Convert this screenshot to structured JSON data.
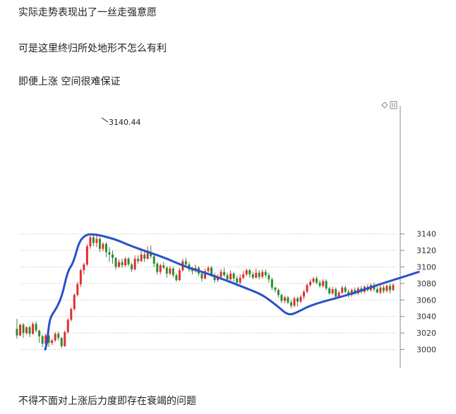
{
  "paragraphs": [
    "实际走势表现出了一丝走强意愿",
    "可是这里终归所处地形不怎么有利",
    "即便上涨 空间很难保证",
    "不得不面对上涨后力度即存在衰竭的问题"
  ],
  "chart_data": {
    "type": "candlestick",
    "title": "",
    "xlabel": "",
    "ylabel": "",
    "ylim": [
      2990,
      3146
    ],
    "yticks": [
      "3140",
      "3120",
      "3100",
      "3080",
      "3060",
      "3040",
      "3020",
      "3000"
    ],
    "peak_label": "3140.44",
    "colors": {
      "up": "#e03030",
      "down": "#2e8b2e",
      "annotation": "#2952c9",
      "grid": "#bbbbbb"
    },
    "grid": true,
    "annotation_trend": [
      [
        0,
        3000
      ],
      [
        1,
        3008
      ],
      [
        2,
        3030
      ],
      [
        3,
        3040
      ],
      [
        6,
        3050
      ],
      [
        9,
        3065
      ],
      [
        12,
        3095
      ],
      [
        15,
        3105
      ],
      [
        18,
        3130
      ],
      [
        21,
        3138
      ],
      [
        24,
        3140
      ],
      [
        30,
        3138
      ],
      [
        38,
        3133
      ],
      [
        45,
        3126
      ],
      [
        55,
        3118
      ],
      [
        65,
        3110
      ],
      [
        75,
        3100
      ],
      [
        85,
        3093
      ],
      [
        95,
        3085
      ],
      [
        105,
        3076
      ],
      [
        115,
        3067
      ],
      [
        120,
        3059
      ],
      [
        125,
        3050
      ],
      [
        128,
        3044
      ],
      [
        131,
        3042
      ],
      [
        135,
        3046
      ],
      [
        140,
        3052
      ],
      [
        148,
        3058
      ],
      [
        158,
        3064
      ],
      [
        168,
        3071
      ],
      [
        178,
        3079
      ],
      [
        188,
        3086
      ],
      [
        199,
        3094
      ]
    ],
    "candles": [
      [
        3025,
        3017,
        3037,
        3013
      ],
      [
        3017,
        3030,
        3031,
        3016
      ],
      [
        3030,
        3020,
        3032,
        3014
      ],
      [
        3020,
        3027,
        3028,
        3018
      ],
      [
        3027,
        3019,
        3029,
        3015
      ],
      [
        3019,
        3031,
        3033,
        3018
      ],
      [
        3031,
        3023,
        3034,
        3021
      ],
      [
        3023,
        3016,
        3024,
        3008
      ],
      [
        3016,
        3007,
        3018,
        3003
      ],
      [
        3007,
        3017,
        3019,
        3005
      ],
      [
        3017,
        3008,
        3018,
        3003
      ],
      [
        3008,
        3011,
        3013,
        3005
      ],
      [
        3011,
        3019,
        3021,
        3009
      ],
      [
        3019,
        3014,
        3022,
        3011
      ],
      [
        3014,
        3004,
        3015,
        3002
      ],
      [
        3004,
        3021,
        3023,
        3003
      ],
      [
        3021,
        3036,
        3038,
        3019
      ],
      [
        3036,
        3049,
        3051,
        3034
      ],
      [
        3049,
        3066,
        3068,
        3047
      ],
      [
        3066,
        3079,
        3082,
        3064
      ],
      [
        3079,
        3096,
        3098,
        3076
      ],
      [
        3096,
        3103,
        3105,
        3091
      ],
      [
        3103,
        3125,
        3128,
        3101
      ],
      [
        3125,
        3136,
        3138,
        3122
      ],
      [
        3136,
        3129,
        3139,
        3125
      ],
      [
        3129,
        3134,
        3140.44,
        3124
      ],
      [
        3134,
        3122,
        3136,
        3118
      ],
      [
        3122,
        3128,
        3130,
        3119
      ],
      [
        3128,
        3118,
        3130,
        3112
      ],
      [
        3118,
        3115,
        3124,
        3106
      ],
      [
        3115,
        3111,
        3120,
        3104
      ],
      [
        3111,
        3100,
        3112,
        3097
      ],
      [
        3100,
        3106,
        3109,
        3099
      ],
      [
        3106,
        3102,
        3110,
        3099
      ],
      [
        3102,
        3110,
        3112,
        3100
      ],
      [
        3110,
        3103,
        3112,
        3101
      ],
      [
        3103,
        3097,
        3105,
        3094
      ],
      [
        3097,
        3110,
        3114,
        3096
      ],
      [
        3110,
        3107,
        3114,
        3104
      ],
      [
        3107,
        3115,
        3121,
        3106
      ],
      [
        3115,
        3110,
        3121,
        3106
      ],
      [
        3110,
        3118,
        3125,
        3109
      ],
      [
        3118,
        3113,
        3126,
        3110
      ],
      [
        3113,
        3104,
        3115,
        3100
      ],
      [
        3104,
        3094,
        3106,
        3091
      ],
      [
        3094,
        3102,
        3104,
        3091
      ],
      [
        3102,
        3099,
        3106,
        3097
      ],
      [
        3099,
        3092,
        3101,
        3087
      ],
      [
        3092,
        3098,
        3101,
        3090
      ],
      [
        3098,
        3090,
        3100,
        3087
      ],
      [
        3090,
        3084,
        3092,
        3082
      ],
      [
        3084,
        3096,
        3099,
        3083
      ],
      [
        3096,
        3107,
        3110,
        3094
      ],
      [
        3107,
        3103,
        3111,
        3100
      ],
      [
        3103,
        3097,
        3106,
        3094
      ],
      [
        3097,
        3095,
        3100,
        3091
      ],
      [
        3095,
        3099,
        3103,
        3093
      ],
      [
        3099,
        3092,
        3101,
        3089
      ],
      [
        3092,
        3086,
        3094,
        3082
      ],
      [
        3086,
        3095,
        3098,
        3085
      ],
      [
        3095,
        3099,
        3101,
        3093
      ],
      [
        3099,
        3090,
        3101,
        3088
      ],
      [
        3090,
        3084,
        3093,
        3081
      ],
      [
        3084,
        3088,
        3091,
        3082
      ],
      [
        3088,
        3094,
        3097,
        3086
      ],
      [
        3094,
        3090,
        3099,
        3088
      ],
      [
        3090,
        3085,
        3093,
        3083
      ],
      [
        3085,
        3092,
        3096,
        3083
      ],
      [
        3092,
        3086,
        3094,
        3082
      ],
      [
        3086,
        3081,
        3089,
        3078
      ],
      [
        3081,
        3087,
        3091,
        3079
      ],
      [
        3087,
        3091,
        3095,
        3085
      ],
      [
        3091,
        3096,
        3098,
        3089
      ],
      [
        3096,
        3091,
        3098,
        3087
      ],
      [
        3091,
        3087,
        3094,
        3085
      ],
      [
        3087,
        3093,
        3098,
        3086
      ],
      [
        3093,
        3088,
        3096,
        3085
      ],
      [
        3088,
        3094,
        3097,
        3086
      ],
      [
        3094,
        3090,
        3097,
        3087
      ],
      [
        3090,
        3085,
        3093,
        3081
      ],
      [
        3085,
        3075,
        3087,
        3072
      ],
      [
        3075,
        3072,
        3076,
        3069
      ],
      [
        3072,
        3066,
        3074,
        3063
      ],
      [
        3066,
        3059,
        3068,
        3056
      ],
      [
        3059,
        3063,
        3065,
        3056
      ],
      [
        3063,
        3057,
        3065,
        3055
      ],
      [
        3057,
        3053,
        3060,
        3050
      ],
      [
        3053,
        3062,
        3064,
        3051
      ],
      [
        3062,
        3058,
        3064,
        3052
      ],
      [
        3058,
        3064,
        3066,
        3056
      ],
      [
        3064,
        3070,
        3072,
        3061
      ],
      [
        3070,
        3078,
        3080,
        3068
      ],
      [
        3078,
        3082,
        3085,
        3076
      ],
      [
        3082,
        3086,
        3088,
        3080
      ],
      [
        3086,
        3081,
        3089,
        3079
      ],
      [
        3081,
        3077,
        3084,
        3075
      ],
      [
        3077,
        3083,
        3085,
        3075
      ],
      [
        3083,
        3074,
        3085,
        3072
      ],
      [
        3074,
        3068,
        3076,
        3066
      ],
      [
        3068,
        3073,
        3076,
        3066
      ],
      [
        3073,
        3064,
        3075,
        3061
      ],
      [
        3064,
        3069,
        3071,
        3062
      ],
      [
        3069,
        3075,
        3077,
        3067
      ],
      [
        3075,
        3070,
        3077,
        3068
      ],
      [
        3070,
        3066,
        3073,
        3063
      ],
      [
        3066,
        3072,
        3074,
        3064
      ],
      [
        3072,
        3068,
        3075,
        3066
      ],
      [
        3068,
        3074,
        3076,
        3066
      ],
      [
        3074,
        3070,
        3077,
        3068
      ],
      [
        3070,
        3076,
        3078,
        3068
      ],
      [
        3076,
        3072,
        3079,
        3070
      ],
      [
        3072,
        3078,
        3080,
        3070
      ],
      [
        3078,
        3073,
        3081,
        3070
      ],
      [
        3073,
        3069,
        3076,
        3068
      ],
      [
        3069,
        3075,
        3078,
        3067
      ],
      [
        3075,
        3071,
        3078,
        3068
      ],
      [
        3071,
        3077,
        3079,
        3069
      ],
      [
        3077,
        3072,
        3080,
        3068
      ],
      [
        3072,
        3078,
        3080,
        3071
      ]
    ]
  }
}
